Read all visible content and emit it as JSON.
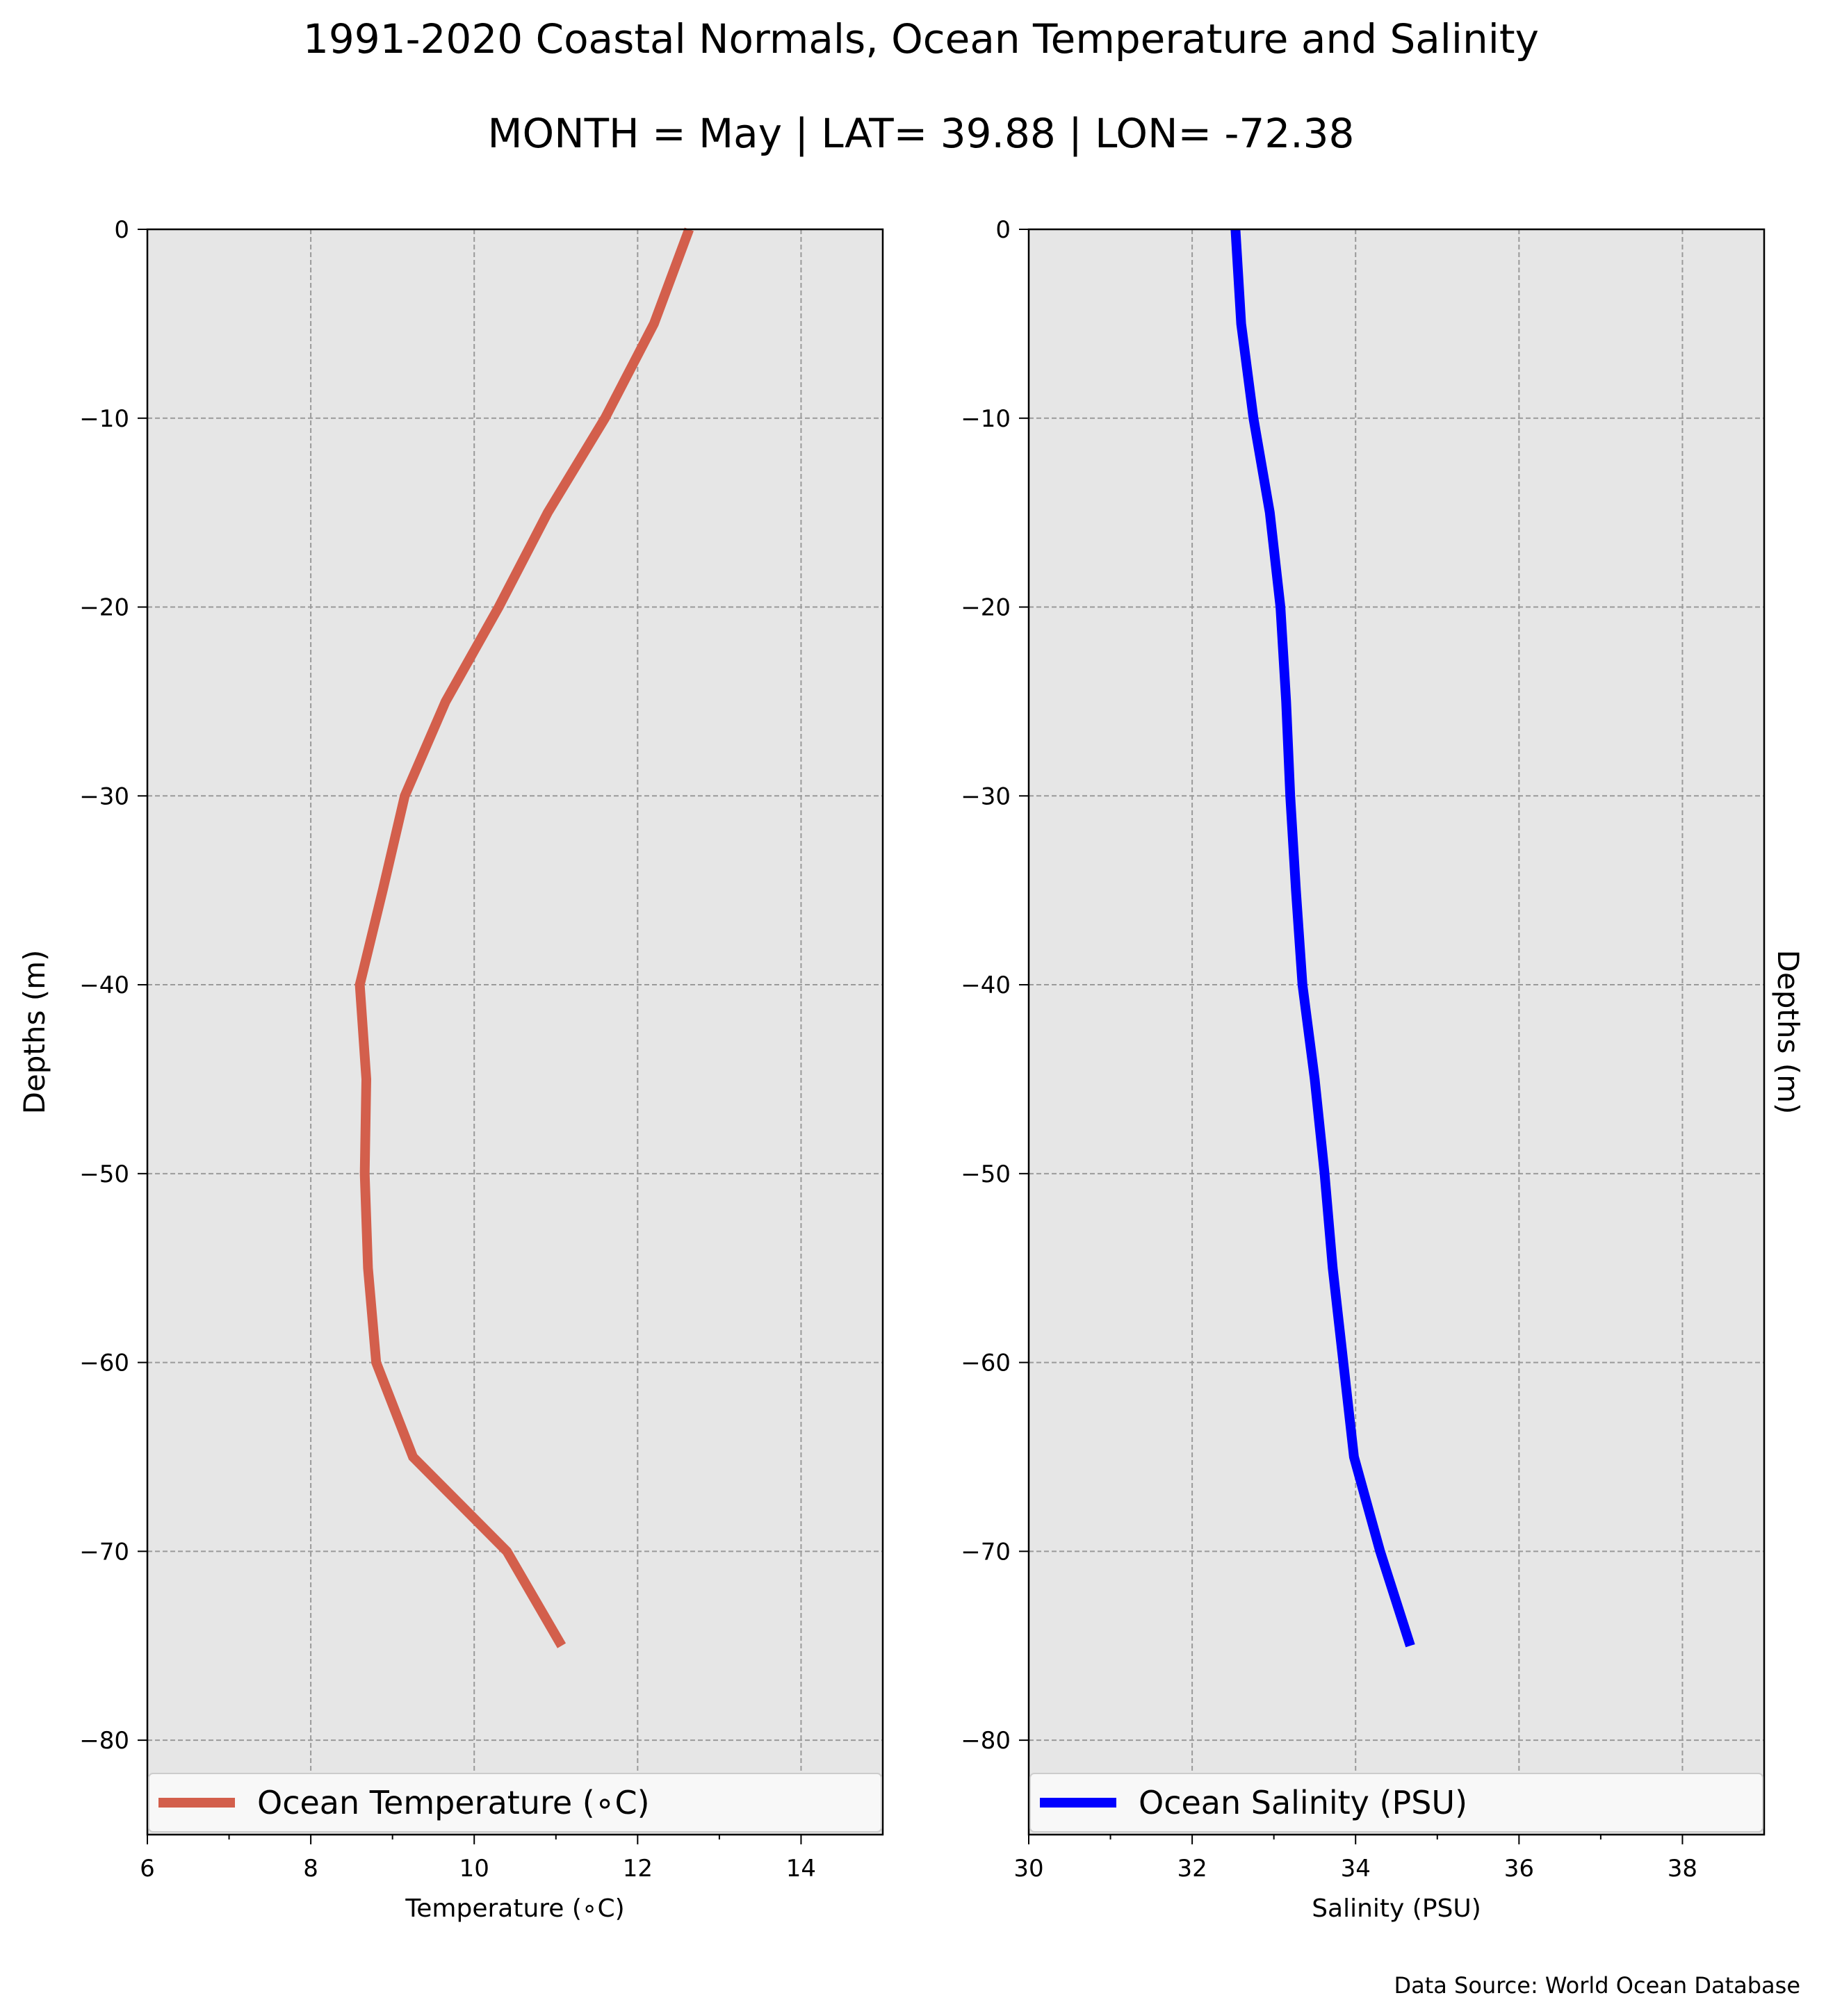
{
  "title": "1991-2020 Coastal Normals, Ocean Temperature and Salinity",
  "subtitle": "MONTH = May | LAT= 39.88 | LON= -72.38",
  "source": "Data Source: World Ocean Database",
  "chart_data": [
    {
      "type": "line",
      "xlabel": "Temperature (∘C)",
      "ylabel": "Depths (m)",
      "xlim": [
        6,
        15
      ],
      "ylim": [
        -85,
        0
      ],
      "xticks": [
        "6",
        "8",
        "10",
        "12",
        "14"
      ],
      "yticks": [
        "0",
        "−10",
        "−20",
        "−30",
        "−40",
        "−50",
        "−60",
        "−70",
        "−80"
      ],
      "grid": true,
      "legend": "bottom",
      "color": "#d35f4c",
      "series": [
        {
          "name": "Ocean Temperature (∘C)",
          "x": [
            12.63,
            12.2,
            11.6,
            10.9,
            10.3,
            9.65,
            9.15,
            8.88,
            8.6,
            8.68,
            8.66,
            8.7,
            8.8,
            9.25,
            10.4,
            11.07
          ],
          "y": [
            0,
            -5,
            -10,
            -15,
            -20,
            -25,
            -30,
            -35,
            -40,
            -45,
            -50,
            -55,
            -60,
            -65,
            -70,
            -75
          ]
        }
      ]
    },
    {
      "type": "line",
      "xlabel": "Salinity (PSU)",
      "ylabel": "Depths (m)",
      "xlim": [
        30,
        39
      ],
      "ylim": [
        -85,
        0
      ],
      "xticks": [
        "30",
        "32",
        "34",
        "36",
        "38"
      ],
      "yticks": [
        "0",
        "−10",
        "−20",
        "−30",
        "−40",
        "−50",
        "−60",
        "−70",
        "−80"
      ],
      "grid": true,
      "legend": "bottom",
      "color": "#0000ff",
      "series": [
        {
          "name": "Ocean Salinity (PSU)",
          "x": [
            32.53,
            32.6,
            32.75,
            32.95,
            33.08,
            33.15,
            33.2,
            33.27,
            33.35,
            33.5,
            33.62,
            33.72,
            33.85,
            33.98,
            34.3,
            34.67
          ],
          "y": [
            0,
            -5,
            -10,
            -15,
            -20,
            -25,
            -30,
            -35,
            -40,
            -45,
            -50,
            -55,
            -60,
            -65,
            -70,
            -75
          ]
        }
      ]
    }
  ]
}
